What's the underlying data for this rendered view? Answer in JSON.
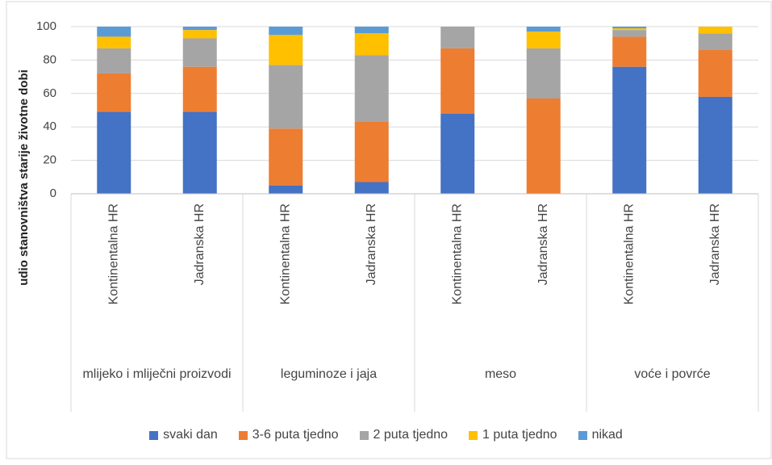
{
  "chart_data": {
    "type": "stacked_bar",
    "y_label": "udio stanovništva starije životne dobi",
    "categories": [
      "Kontinentalna HR",
      "Jadranska HR",
      "Kontinentalna HR",
      "Jadranska HR",
      "Kontinentalna HR",
      "Jadranska HR",
      "Kontinentalna HR",
      "Jadranska HR"
    ],
    "groups": [
      "mlijeko i mliječni proizvodi",
      "leguminoze i jaja",
      "meso",
      "voće i povrće"
    ],
    "series": [
      {
        "name": "svaki dan",
        "color": "#4472c4",
        "values": [
          49,
          49,
          5,
          7,
          48,
          0,
          76,
          58
        ]
      },
      {
        "name": "3-6 puta tjedno",
        "color": "#ed7d31",
        "values": [
          23,
          27,
          34,
          36,
          39,
          57,
          18,
          28
        ]
      },
      {
        "name": "2 puta tjedno",
        "color": "#a5a5a5",
        "values": [
          15,
          17,
          38,
          40,
          13,
          30,
          4,
          10
        ]
      },
      {
        "name": "1 puta tjedno",
        "color": "#ffc000",
        "values": [
          7,
          5,
          18,
          13,
          0,
          10,
          1,
          4
        ]
      },
      {
        "name": "nikad",
        "color": "#5b9bd5",
        "values": [
          6,
          2,
          5,
          4,
          0,
          3,
          1,
          0
        ]
      }
    ],
    "ylim": [
      0,
      100
    ],
    "yticks": [
      0,
      20,
      40,
      60,
      80,
      100
    ],
    "grid": true,
    "legend": "bottom"
  }
}
